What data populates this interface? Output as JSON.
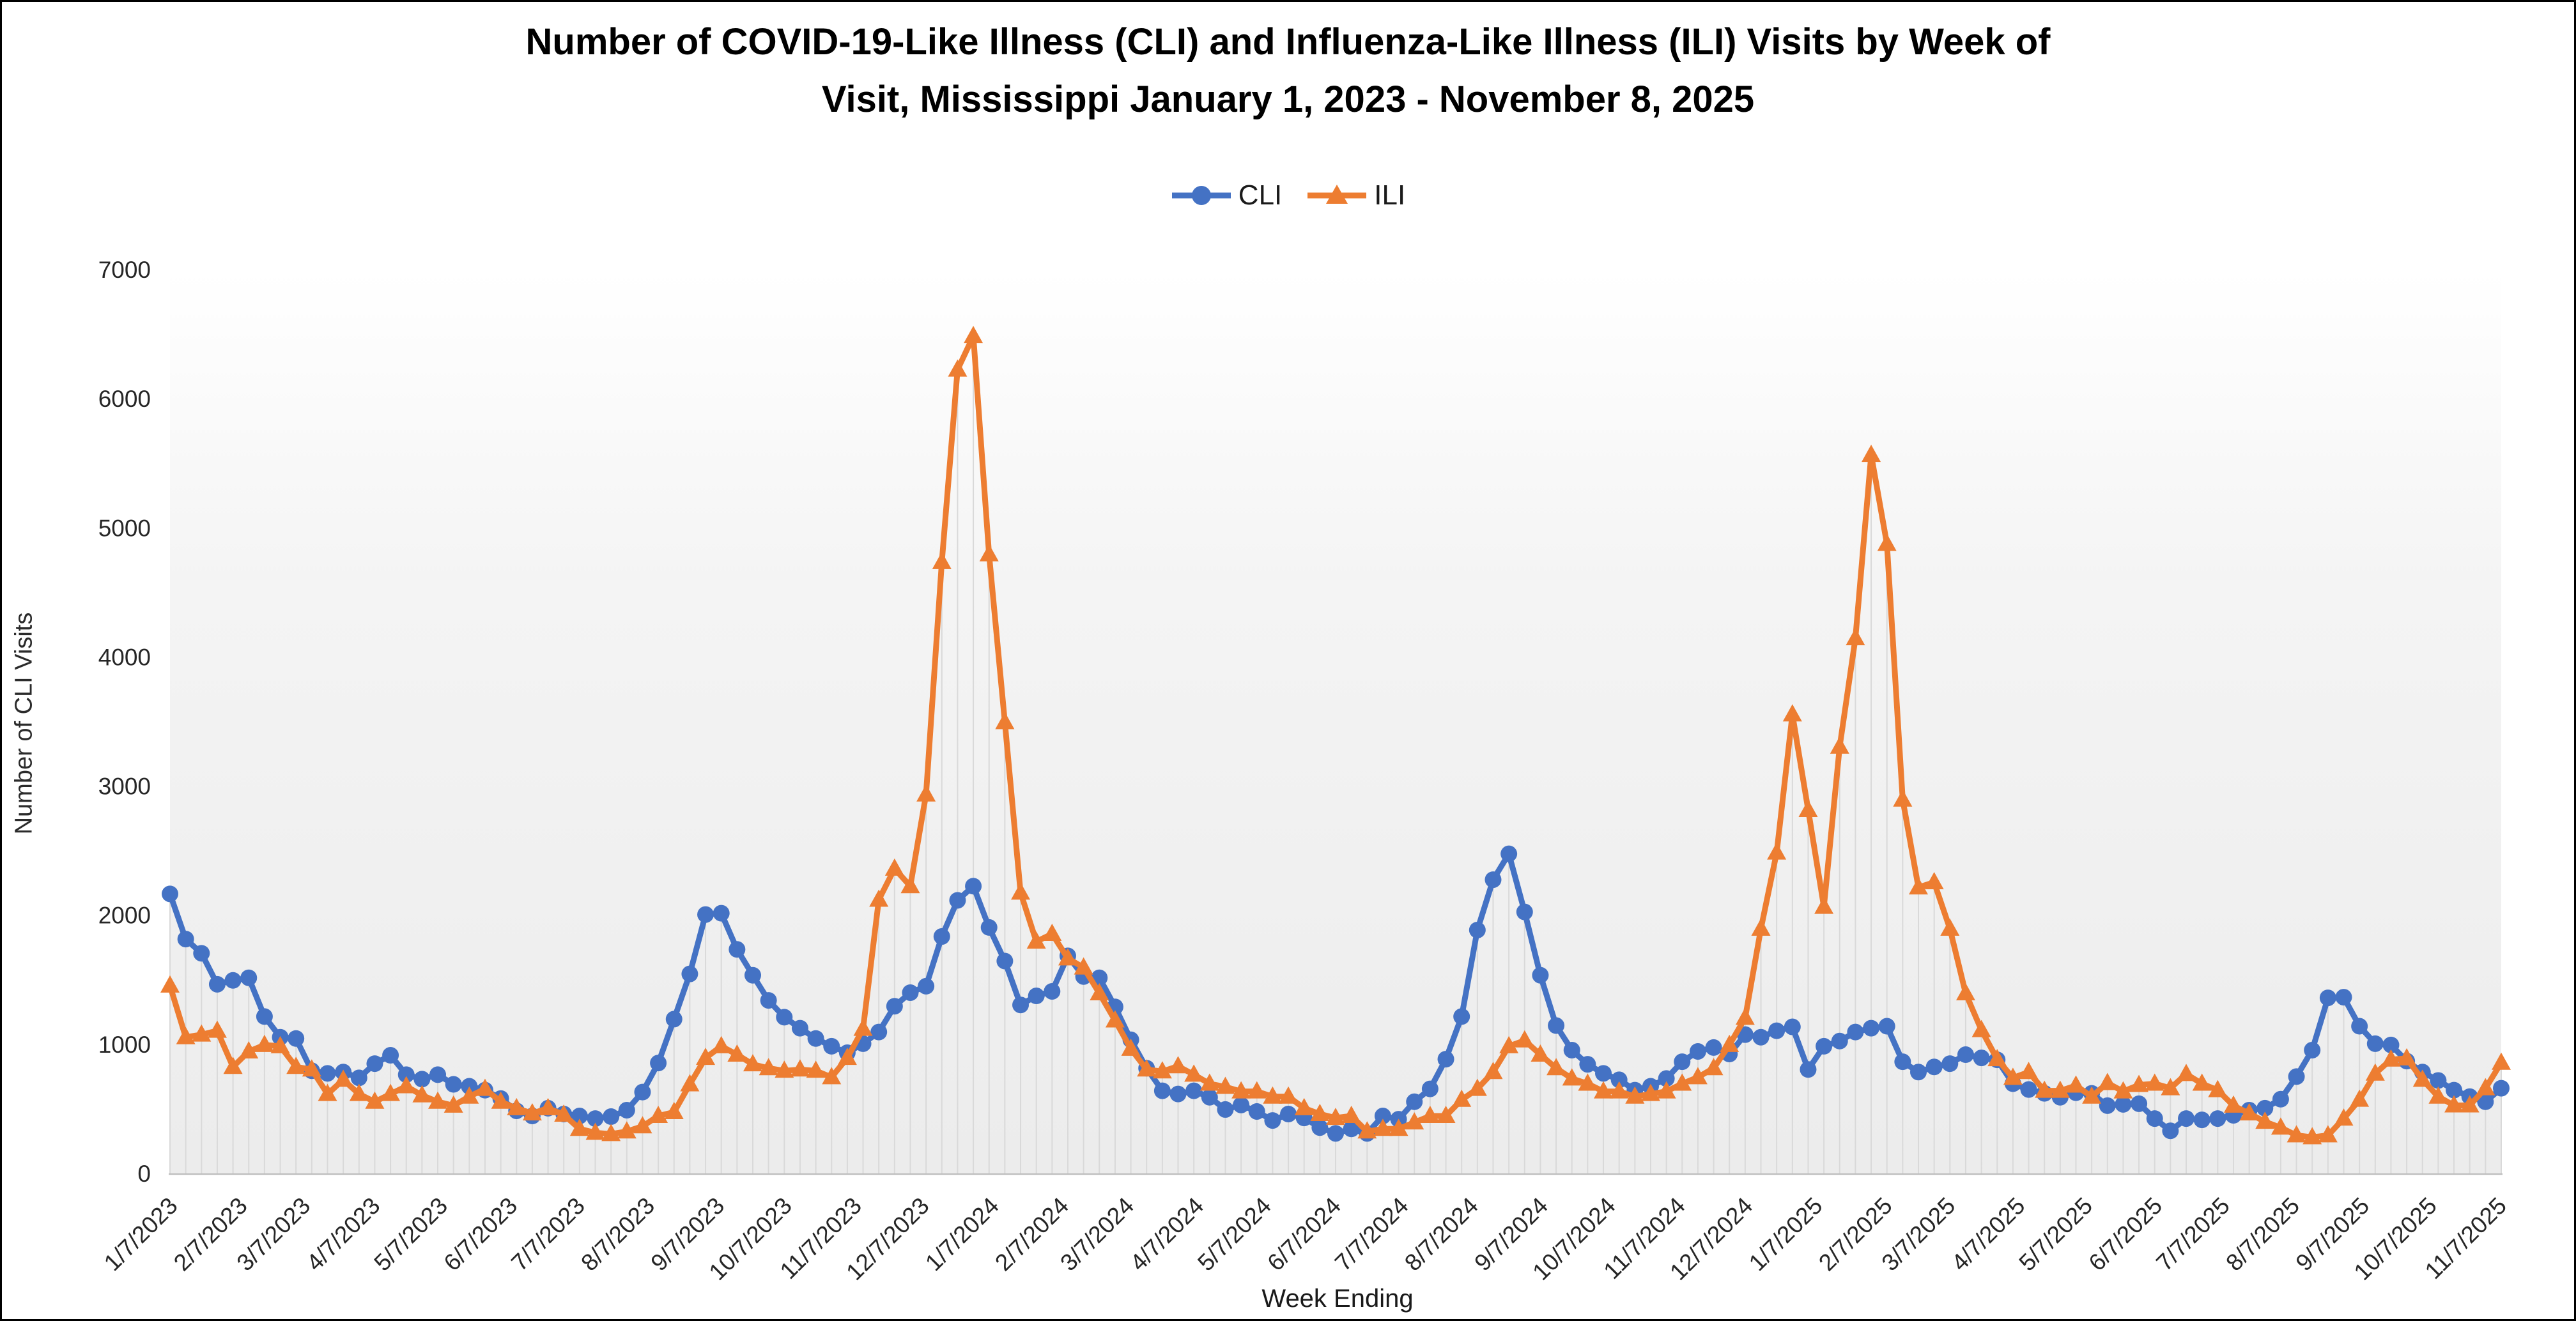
{
  "title": {
    "line1": "Number of COVID-19-Like Illness (CLI) and Influenza-Like Illness (ILI) Visits by Week of",
    "line2": "Visit, Mississippi January 1, 2023 - November 8, 2025"
  },
  "legend": {
    "items": [
      {
        "label": "CLI",
        "color": "#4472C4",
        "marker": "circle"
      },
      {
        "label": "ILI",
        "color": "#ED7D31",
        "marker": "triangle"
      }
    ]
  },
  "chart_data": {
    "type": "line",
    "title": "Number of COVID-19-Like Illness (CLI) and Influenza-Like Illness (ILI) Visits by Week of Visit, Mississippi January 1, 2023 - November 8, 2025",
    "xlabel": "Week Ending",
    "ylabel": "Number of CLI Visits",
    "ylim": [
      0,
      7000
    ],
    "y_ticks": [
      0,
      1000,
      2000,
      3000,
      4000,
      5000,
      6000,
      7000
    ],
    "x_tick_labels": [
      "1/7/2023",
      "2/7/2023",
      "3/7/2023",
      "4/7/2023",
      "5/7/2023",
      "6/7/2023",
      "7/7/2023",
      "8/7/2023",
      "9/7/2023",
      "10/7/2023",
      "11/7/2023",
      "12/7/2023",
      "1/7/2024",
      "2/7/2024",
      "3/7/2024",
      "4/7/2024",
      "5/7/2024",
      "6/7/2024",
      "7/7/2024",
      "8/7/2024",
      "9/7/2024",
      "10/7/2024",
      "11/7/2024",
      "12/7/2024",
      "1/7/2025",
      "2/7/2025",
      "3/7/2025",
      "4/7/2025",
      "5/7/2025",
      "6/7/2025",
      "7/7/2025",
      "8/7/2025",
      "9/7/2025",
      "10/7/2025",
      "11/7/2025"
    ],
    "grid": "weekly-drop-lines",
    "legend_position": "top-center",
    "x": [
      "1/7/2023",
      "1/14/2023",
      "1/21/2023",
      "1/28/2023",
      "2/4/2023",
      "2/11/2023",
      "2/18/2023",
      "2/25/2023",
      "3/4/2023",
      "3/11/2023",
      "3/18/2023",
      "3/25/2023",
      "4/1/2023",
      "4/8/2023",
      "4/15/2023",
      "4/22/2023",
      "4/29/2023",
      "5/6/2023",
      "5/13/2023",
      "5/20/2023",
      "5/27/2023",
      "6/3/2023",
      "6/10/2023",
      "6/17/2023",
      "6/24/2023",
      "7/1/2023",
      "7/8/2023",
      "7/15/2023",
      "7/22/2023",
      "7/29/2023",
      "8/5/2023",
      "8/12/2023",
      "8/19/2023",
      "8/26/2023",
      "9/2/2023",
      "9/9/2023",
      "9/16/2023",
      "9/23/2023",
      "9/30/2023",
      "10/7/2023",
      "10/14/2023",
      "10/21/2023",
      "10/28/2023",
      "11/4/2023",
      "11/11/2023",
      "11/18/2023",
      "11/25/2023",
      "12/2/2023",
      "12/9/2023",
      "12/16/2023",
      "12/23/2023",
      "12/30/2023",
      "1/6/2024",
      "1/13/2024",
      "1/20/2024",
      "1/27/2024",
      "2/3/2024",
      "2/10/2024",
      "2/17/2024",
      "2/24/2024",
      "3/2/2024",
      "3/9/2024",
      "3/16/2024",
      "3/23/2024",
      "3/30/2024",
      "4/6/2024",
      "4/13/2024",
      "4/20/2024",
      "4/27/2024",
      "5/4/2024",
      "5/11/2024",
      "5/18/2024",
      "5/25/2024",
      "6/1/2024",
      "6/8/2024",
      "6/15/2024",
      "6/22/2024",
      "6/29/2024",
      "7/6/2024",
      "7/13/2024",
      "7/20/2024",
      "7/27/2024",
      "8/3/2024",
      "8/10/2024",
      "8/17/2024",
      "8/24/2024",
      "8/31/2024",
      "9/7/2024",
      "9/14/2024",
      "9/21/2024",
      "9/28/2024",
      "10/5/2024",
      "10/12/2024",
      "10/19/2024",
      "10/26/2024",
      "11/2/2024",
      "11/9/2024",
      "11/16/2024",
      "11/23/2024",
      "11/30/2024",
      "12/7/2024",
      "12/14/2024",
      "12/21/2024",
      "12/28/2024",
      "1/4/2025",
      "1/11/2025",
      "1/18/2025",
      "1/25/2025",
      "2/1/2025",
      "2/8/2025",
      "2/15/2025",
      "2/22/2025",
      "3/1/2025",
      "3/8/2025",
      "3/15/2025",
      "3/22/2025",
      "3/29/2025",
      "4/5/2025",
      "4/12/2025",
      "4/19/2025",
      "4/26/2025",
      "5/3/2025",
      "5/10/2025",
      "5/17/2025",
      "5/24/2025",
      "5/31/2025",
      "6/7/2025",
      "6/14/2025",
      "6/21/2025",
      "6/28/2025",
      "7/5/2025",
      "7/12/2025",
      "7/19/2025",
      "7/26/2025",
      "8/2/2025",
      "8/9/2025",
      "8/16/2025",
      "8/23/2025",
      "8/30/2025",
      "9/6/2025",
      "9/13/2025",
      "9/20/2025",
      "9/27/2025",
      "10/4/2025",
      "10/11/2025",
      "10/18/2025",
      "10/25/2025",
      "11/1/2025",
      "11/8/2025"
    ],
    "series": [
      {
        "name": "CLI",
        "color": "#4472C4",
        "marker": "circle",
        "values": [
          2170,
          1820,
          1710,
          1470,
          1500,
          1520,
          1220,
          1060,
          1050,
          800,
          780,
          790,
          745,
          855,
          920,
          770,
          735,
          770,
          695,
          680,
          650,
          585,
          490,
          450,
          510,
          465,
          450,
          430,
          445,
          495,
          635,
          860,
          1200,
          1550,
          2010,
          2020,
          1740,
          1540,
          1345,
          1215,
          1130,
          1050,
          990,
          940,
          1010,
          1100,
          1300,
          1405,
          1455,
          1840,
          2120,
          2230,
          1910,
          1650,
          1310,
          1380,
          1415,
          1690,
          1530,
          1520,
          1295,
          1040,
          820,
          645,
          620,
          645,
          595,
          500,
          535,
          485,
          415,
          465,
          435,
          360,
          315,
          350,
          315,
          450,
          425,
          560,
          660,
          890,
          1220,
          1890,
          2280,
          2480,
          2030,
          1540,
          1150,
          960,
          850,
          780,
          730,
          650,
          680,
          740,
          870,
          950,
          980,
          930,
          1080,
          1060,
          1110,
          1140,
          810,
          990,
          1030,
          1100,
          1130,
          1145,
          870,
          790,
          830,
          855,
          925,
          900,
          885,
          700,
          655,
          625,
          595,
          630,
          625,
          530,
          540,
          545,
          430,
          335,
          430,
          420,
          430,
          455,
          495,
          510,
          580,
          755,
          960,
          1365,
          1370,
          1145,
          1010,
          1000,
          875,
          790,
          725,
          650,
          600,
          560,
          665
        ]
      },
      {
        "name": "ILI",
        "color": "#ED7D31",
        "marker": "triangle",
        "values": [
          1460,
          1060,
          1080,
          1110,
          830,
          950,
          1000,
          990,
          830,
          810,
          620,
          730,
          620,
          560,
          620,
          680,
          610,
          560,
          530,
          600,
          660,
          560,
          510,
          470,
          510,
          460,
          350,
          320,
          310,
          330,
          370,
          450,
          480,
          695,
          900,
          990,
          925,
          850,
          820,
          800,
          810,
          800,
          750,
          900,
          1125,
          2125,
          2365,
          2230,
          2940,
          4740,
          6230,
          6490,
          4800,
          3500,
          2180,
          1800,
          1860,
          1670,
          1600,
          1400,
          1190,
          970,
          810,
          795,
          835,
          770,
          700,
          675,
          640,
          640,
          600,
          600,
          510,
          465,
          435,
          450,
          330,
          350,
          350,
          400,
          450,
          450,
          575,
          660,
          790,
          990,
          1035,
          925,
          820,
          740,
          700,
          640,
          640,
          600,
          620,
          640,
          700,
          750,
          820,
          1000,
          1210,
          1900,
          2490,
          3560,
          2820,
          2070,
          3310,
          4150,
          5570,
          4880,
          2900,
          2220,
          2260,
          1900,
          1400,
          1115,
          890,
          745,
          790,
          645,
          645,
          685,
          600,
          705,
          640,
          690,
          700,
          665,
          775,
          700,
          650,
          530,
          470,
          405,
          360,
          300,
          285,
          300,
          430,
          576,
          778,
          887,
          896,
          730,
          600,
          532,
          532,
          665,
          862
        ]
      }
    ]
  },
  "colors": {
    "cli": "#4472C4",
    "ili": "#ED7D31",
    "drop_line": "#D9D9D9",
    "axis_line": "#BFBFBF",
    "tick_text": "#262626",
    "plot_bg_top": "#FFFFFF",
    "plot_bg_bottom": "#ECECEC"
  }
}
